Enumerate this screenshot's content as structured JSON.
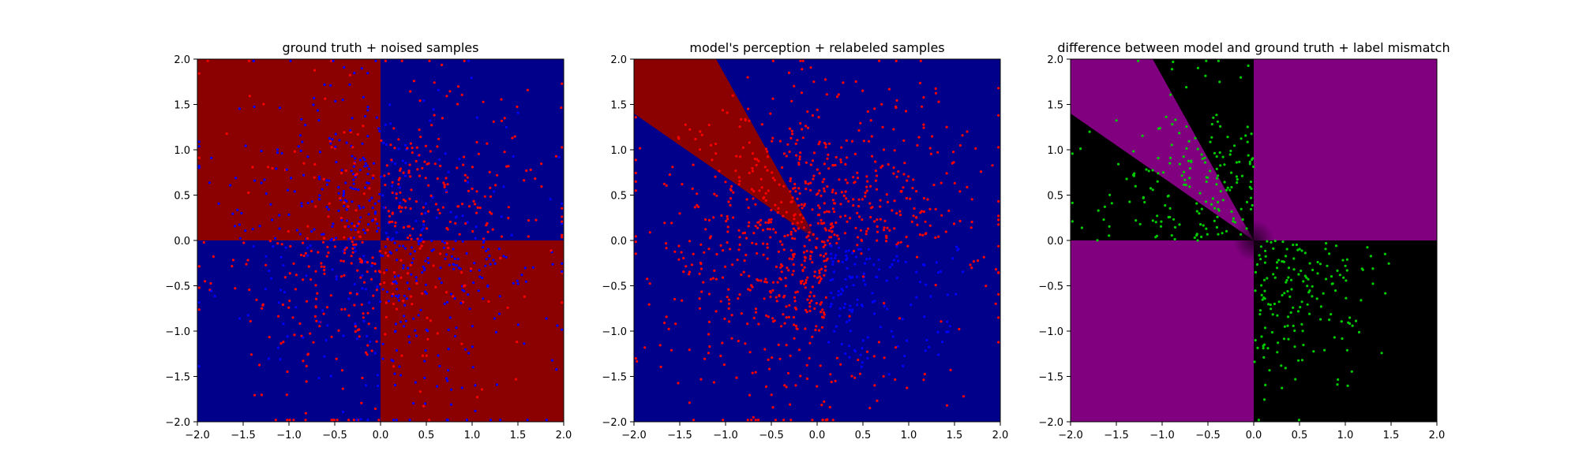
{
  "chart_data": [
    {
      "type": "heatmap",
      "title": "ground truth + noised samples",
      "xlim": [
        -2.0,
        2.0
      ],
      "ylim": [
        -2.0,
        2.0
      ],
      "xticks": [
        -2.0,
        -1.5,
        -1.0,
        -0.5,
        0.0,
        0.5,
        1.0,
        1.5,
        2.0
      ],
      "yticks": [
        -2.0,
        -1.5,
        -1.0,
        -0.5,
        0.0,
        0.5,
        1.0,
        1.5,
        2.0
      ],
      "tick_labels": [
        "−2.0",
        "−1.5",
        "−1.0",
        "−0.5",
        "0.0",
        "0.5",
        "1.0",
        "1.5",
        "2.0"
      ],
      "grid": false,
      "background": "checkerboard: x*y<0 red, x*y>0 blue",
      "region_colors": {
        "positive_product": "#00008b",
        "negative_product": "#8b0000"
      },
      "samples": {
        "count_approx": 1000,
        "x_range": [
          -2.0,
          2.0
        ],
        "y_range": [
          -2.0,
          2.0
        ],
        "class_rule": "red where x*y>0 else blue (noised labels)",
        "colors": {
          "red": "#ff0000",
          "blue": "#0000ff"
        }
      }
    },
    {
      "type": "heatmap",
      "title": "model's perception + relabeled samples",
      "xlim": [
        -2.0,
        2.0
      ],
      "ylim": [
        -2.0,
        2.0
      ],
      "xticks": [
        -2.0,
        -1.5,
        -1.0,
        -0.5,
        0.0,
        0.5,
        1.0,
        1.5,
        2.0
      ],
      "yticks": [
        -2.0,
        -1.5,
        -1.0,
        -0.5,
        0.0,
        0.5,
        1.0,
        1.5,
        2.0
      ],
      "tick_labels": [
        "−2.0",
        "−1.5",
        "−1.0",
        "−0.5",
        "0.0",
        "0.5",
        "1.0",
        "1.5",
        "2.0"
      ],
      "grid": false,
      "background": "blue everywhere except red wedge from origin between directions (-2.0,1.4) and (-1.1,2.0)",
      "wedge_direction_angles_deg": [
        145,
        119
      ],
      "region_colors": {
        "model_positive": "#00008b",
        "model_negative": "#8b0000"
      },
      "samples": {
        "count_approx": 1000,
        "x_range": [
          -2.0,
          2.0
        ],
        "y_range": [
          -2.0,
          2.0
        ],
        "class_rule": "red except blue cluster near (0.8,-0.6)",
        "blue_cluster_center": [
          0.8,
          -0.6
        ],
        "colors": {
          "red": "#ff0000",
          "blue": "#0000ff"
        }
      }
    },
    {
      "type": "heatmap",
      "title": "difference between model and ground truth + label mismatch",
      "xlim": [
        -2.0,
        2.0
      ],
      "ylim": [
        -2.0,
        2.0
      ],
      "xticks": [
        -2.0,
        -1.5,
        -1.0,
        -0.5,
        0.0,
        0.5,
        1.0,
        1.5,
        2.0
      ],
      "yticks": [
        -2.0,
        -1.5,
        -1.0,
        -0.5,
        0.0,
        0.5,
        1.0,
        1.5,
        2.0
      ],
      "tick_labels": [
        "−2.0",
        "−1.5",
        "−1.0",
        "−0.5",
        "0.0",
        "0.5",
        "1.0",
        "1.5",
        "2.0"
      ],
      "grid": false,
      "background": "purple where model disagrees with ground truth, black where they agree",
      "region_colors": {
        "mismatch": "#800080",
        "match": "#000000"
      },
      "samples": {
        "count_approx": 360,
        "x_range": [
          -2.0,
          2.0
        ],
        "y_range": [
          -2.0,
          2.0
        ],
        "class_rule": "green mismatched labels in upper-left wedge and lower-right quadrant",
        "colors": {
          "mismatch": "#00cc00"
        }
      }
    }
  ]
}
